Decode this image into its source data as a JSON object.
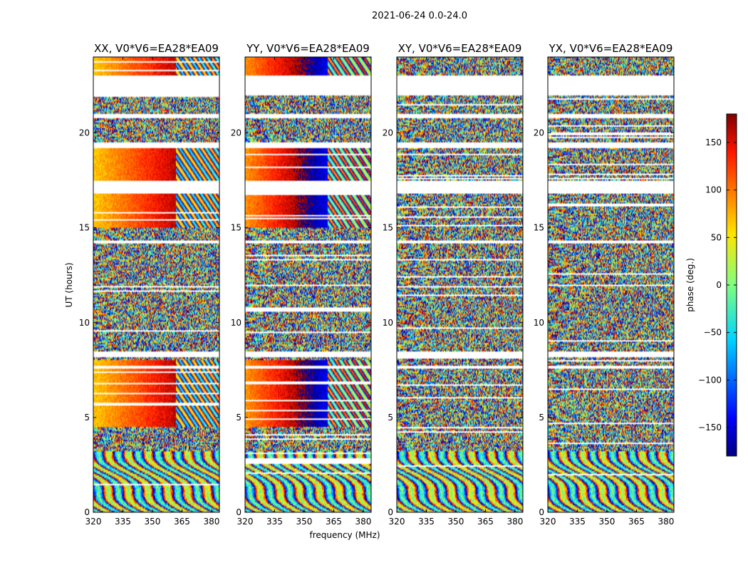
{
  "chart_data": {
    "type": "heatmap",
    "title": "2021-06-24 0.0-24.0",
    "xlabel": "frequency (MHz)",
    "ylabel": "UT (hours)",
    "colorbar_label": "phase (deg.)",
    "colorbar_ticks": [
      150,
      100,
      50,
      0,
      -50,
      -100,
      -150
    ],
    "colorbar_range": [
      -180,
      180
    ],
    "colormap": "jet",
    "x_ticks": [
      320,
      335,
      350,
      365,
      380
    ],
    "x_range": [
      320,
      384
    ],
    "y_ticks": [
      0,
      5,
      10,
      15,
      20
    ],
    "y_range": [
      0,
      24
    ],
    "panels": [
      {
        "title": "XX, V0*V6=EA28*EA09",
        "polarization": "XX"
      },
      {
        "title": "YY, V0*V6=EA28*EA09",
        "polarization": "YY"
      },
      {
        "title": "XY, V0*V6=EA28*EA09",
        "polarization": "XY"
      },
      {
        "title": "YX, V0*V6=EA28*EA09",
        "polarization": "YX"
      }
    ],
    "flagged_time_ranges_hours": [
      [
        22.0,
        23.0
      ],
      [
        20.8,
        21.0
      ],
      [
        19.2,
        19.5
      ],
      [
        16.8,
        17.5
      ],
      [
        14.2,
        14.3
      ],
      [
        8.2,
        8.5
      ],
      [
        7.6,
        7.7
      ]
    ]
  }
}
